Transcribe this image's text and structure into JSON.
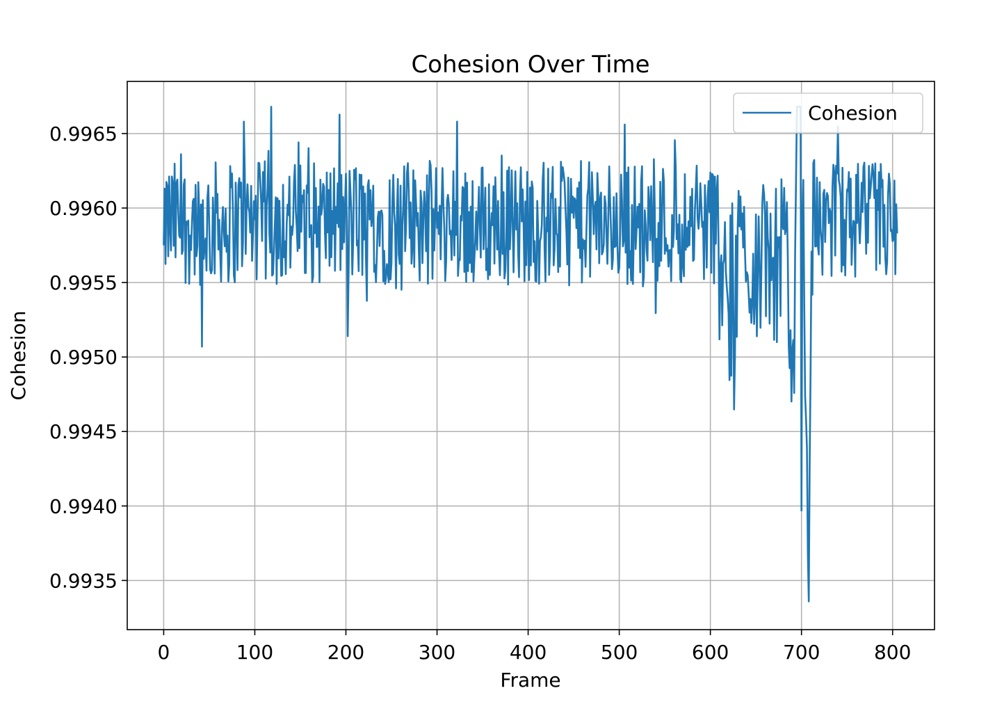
{
  "chart_data": {
    "type": "line",
    "title": "Cohesion Over Time",
    "xlabel": "Frame",
    "ylabel": "Cohesion",
    "xlim": [
      -40,
      846
    ],
    "ylim": [
      0.99317,
      0.99685
    ],
    "xticks": [
      0,
      100,
      200,
      300,
      400,
      500,
      600,
      700,
      800
    ],
    "xtick_labels": [
      "0",
      "100",
      "200",
      "300",
      "400",
      "500",
      "600",
      "700",
      "800"
    ],
    "yticks": [
      0.9935,
      0.994,
      0.9945,
      0.995,
      0.9955,
      0.996,
      0.9965
    ],
    "ytick_labels": [
      "0.9935",
      "0.9940",
      "0.9945",
      "0.9950",
      "0.9955",
      "0.9960",
      "0.9965"
    ],
    "grid": true,
    "legend": {
      "position": "top-right"
    },
    "colors": {
      "series": "#1f77b4"
    },
    "series": [
      {
        "name": "Cohesion",
        "x_start": 0,
        "x_step": 1,
        "values_description": "",
        "values": []
      }
    ]
  }
}
